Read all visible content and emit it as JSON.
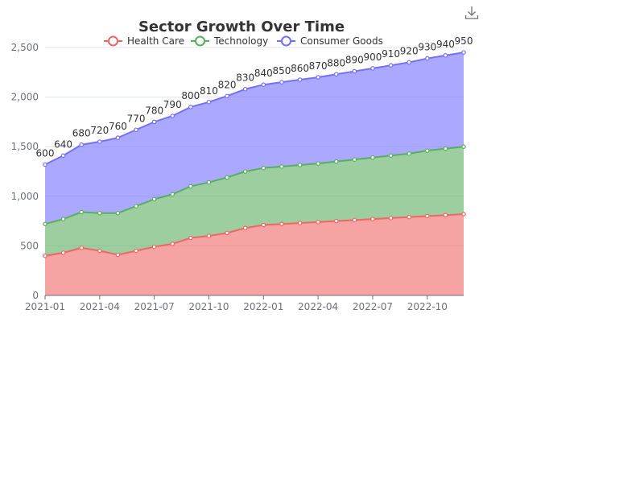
{
  "chart_data": {
    "type": "area",
    "stacked": true,
    "title": "Sector Growth Over Time",
    "x": [
      "2021-01",
      "2021-02",
      "2021-03",
      "2021-04",
      "2021-05",
      "2021-06",
      "2021-07",
      "2021-08",
      "2021-09",
      "2021-10",
      "2021-11",
      "2021-12",
      "2022-01",
      "2022-02",
      "2022-03",
      "2022-04",
      "2022-05",
      "2022-06",
      "2022-07",
      "2022-08",
      "2022-09",
      "2022-10",
      "2022-11",
      "2022-12"
    ],
    "x_tick_labels": [
      "2021-01",
      "2021-04",
      "2021-07",
      "2021-10",
      "2022-01",
      "2022-04",
      "2022-07",
      "2022-10"
    ],
    "y_ticks": [
      "0",
      "500",
      "1,000",
      "1,500",
      "2,000",
      "2,500"
    ],
    "ylim": [
      0,
      2500
    ],
    "grid": true,
    "legend_position": "top-center",
    "series": [
      {
        "name": "Health Care",
        "color": "#ee6666",
        "values": [
          400,
          430,
          480,
          450,
          410,
          450,
          490,
          520,
          580,
          600,
          630,
          680,
          710,
          720,
          730,
          740,
          750,
          760,
          770,
          780,
          790,
          800,
          810,
          820
        ]
      },
      {
        "name": "Technology",
        "color": "#5aae61",
        "values": [
          320,
          340,
          360,
          380,
          420,
          450,
          480,
          500,
          520,
          540,
          560,
          570,
          575,
          580,
          585,
          590,
          600,
          610,
          620,
          630,
          640,
          660,
          670,
          680
        ]
      },
      {
        "name": "Consumer Goods",
        "color": "#7370ff",
        "values": [
          600,
          640,
          680,
          720,
          760,
          770,
          780,
          790,
          800,
          810,
          820,
          830,
          840,
          850,
          860,
          870,
          880,
          890,
          900,
          910,
          920,
          930,
          940,
          950
        ],
        "show_labels": true
      }
    ]
  },
  "toolbar": {
    "download_icon": "download-icon"
  }
}
